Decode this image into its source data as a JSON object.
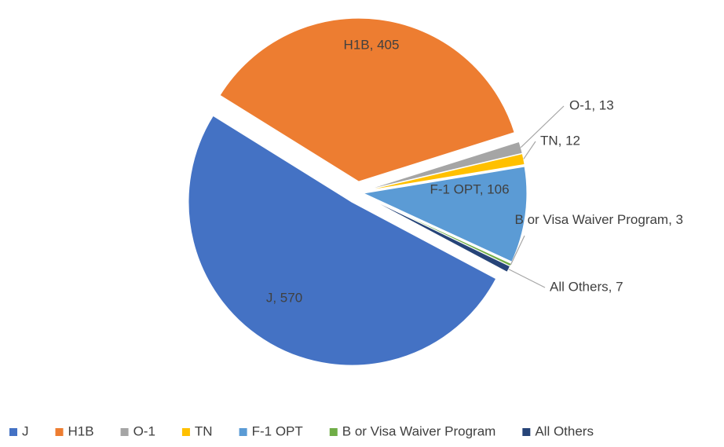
{
  "chart_data": {
    "type": "pie",
    "categories": [
      "J",
      "H1B",
      "O-1",
      "TN",
      "F-1 OPT",
      "B or Visa Waiver Program",
      "All Others"
    ],
    "values": [
      570,
      405,
      13,
      12,
      106,
      3,
      7
    ],
    "value_labels": [
      "J, 570",
      "H1B, 405",
      "O-1, 13",
      "TN, 12",
      "F-1 OPT, 106",
      "B or Visa Waiver Program, 3",
      "All Others, 7"
    ],
    "colors": [
      "#4472c4",
      "#ed7d31",
      "#a5a5a5",
      "#ffc000",
      "#5b9bd5",
      "#70ad47",
      "#264478"
    ],
    "legend": "bottom"
  }
}
